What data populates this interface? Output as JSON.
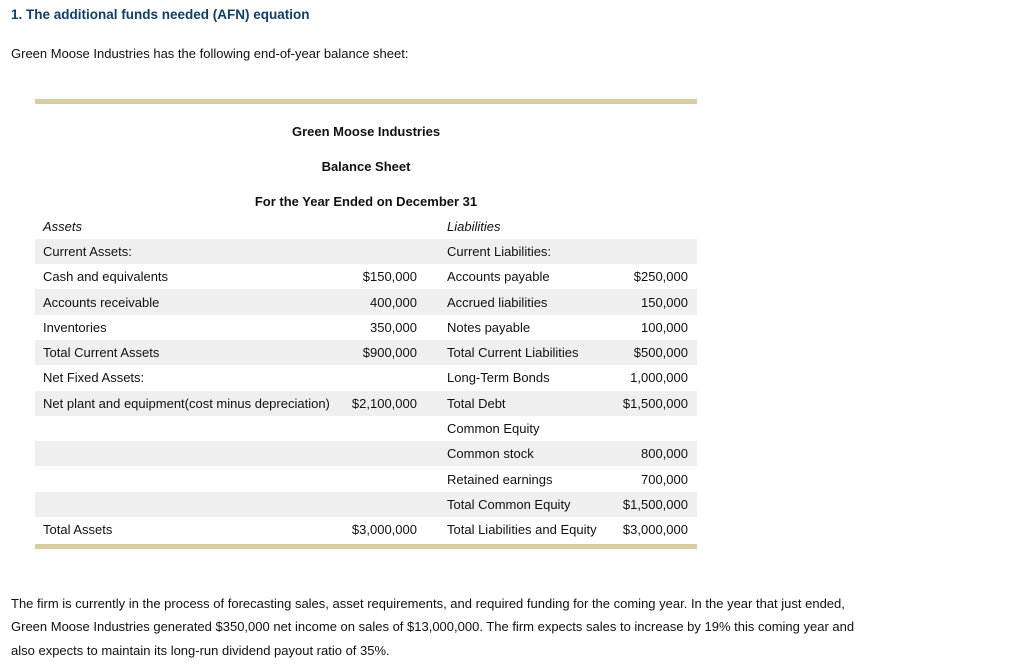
{
  "page": {
    "heading": "1. The additional funds needed (AFN) equation",
    "intro": "Green Moose Industries has the following end-of-year balance sheet:",
    "closing_paragraph_lines": [
      "The firm is currently in the process of forecasting sales, asset requirements, and required funding for the coming year. In the year that just ended,",
      "Green Moose Industries generated $350,000 net income on sales of $13,000,000. The firm expects sales to increase by 19% this coming year and",
      "also expects to maintain its long-run dividend payout ratio of 35%."
    ]
  },
  "colors": {
    "heading_blue": "#123E66",
    "accent_bar": "#D9CEA1",
    "row_shade": "#EFEFEF",
    "text": "#111111"
  },
  "balance_sheet": {
    "company": "Green Moose Industries",
    "statement_title": "Balance Sheet",
    "period": "For the Year Ended on December 31",
    "left_header": "Assets",
    "right_header": "Liabilities",
    "rows": [
      {
        "asset_label": "Current Assets:",
        "asset_value": "",
        "liability_label": "Current Liabilities:",
        "liability_value": "",
        "shaded": true
      },
      {
        "asset_label": "Cash and equivalents",
        "asset_value": "$150,000",
        "liability_label": "Accounts payable",
        "liability_value": "$250,000",
        "shaded": false
      },
      {
        "asset_label": "Accounts receivable",
        "asset_value": "400,000",
        "liability_label": "Accrued liabilities",
        "liability_value": "150,000",
        "shaded": true
      },
      {
        "asset_label": "Inventories",
        "asset_value": "350,000",
        "liability_label": "Notes payable",
        "liability_value": "100,000",
        "shaded": false
      },
      {
        "asset_label": "Total Current Assets",
        "asset_value": "$900,000",
        "liability_label": "Total Current Liabilities",
        "liability_value": "$500,000",
        "shaded": true
      },
      {
        "asset_label": "Net Fixed Assets:",
        "asset_value": "",
        "liability_label": "Long-Term Bonds",
        "liability_value": "1,000,000",
        "shaded": false
      },
      {
        "asset_label": "Net plant and equipment(cost minus depreciation)",
        "asset_value": "$2,100,000",
        "liability_label": "Total Debt",
        "liability_value": "$1,500,000",
        "shaded": true
      },
      {
        "asset_label": "",
        "asset_value": "",
        "liability_label": "Common Equity",
        "liability_value": "",
        "shaded": false
      },
      {
        "asset_label": "",
        "asset_value": "",
        "liability_label": "Common stock",
        "liability_value": "800,000",
        "shaded": true
      },
      {
        "asset_label": "",
        "asset_value": "",
        "liability_label": "Retained earnings",
        "liability_value": "700,000",
        "shaded": false
      },
      {
        "asset_label": "",
        "asset_value": "",
        "liability_label": "Total Common Equity",
        "liability_value": "$1,500,000",
        "shaded": true
      },
      {
        "asset_label": "Total Assets",
        "asset_value": "$3,000,000",
        "liability_label": "Total Liabilities and Equity",
        "liability_value": "$3,000,000",
        "shaded": false
      }
    ]
  }
}
